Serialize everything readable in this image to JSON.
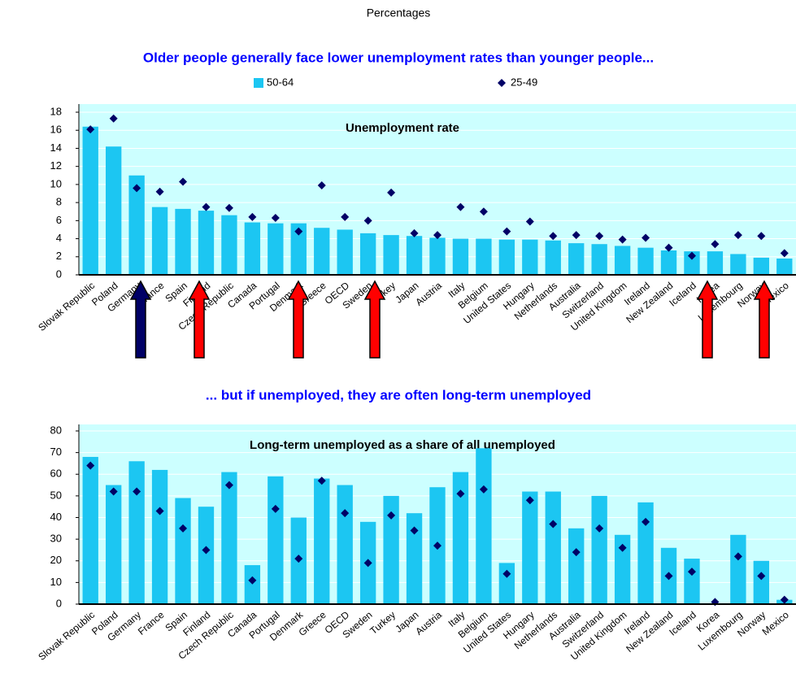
{
  "header": "Percentages",
  "chart_data": [
    {
      "type": "bar",
      "subtitle": "Older people generally face lower unemployment rates than younger people...",
      "title": "Unemployment rate",
      "categories": [
        "Slovak Republic",
        "Poland",
        "Germany",
        "France",
        "Spain",
        "Finland",
        "Czech Republic",
        "Canada",
        "Portugal",
        "Denmark",
        "Greece",
        "OECD",
        "Sweden",
        "Turkey",
        "Japan",
        "Austria",
        "Italy",
        "Belgium",
        "United States",
        "Hungary",
        "Netherlands",
        "Australia",
        "Switzerland",
        "United Kingdom",
        "Ireland",
        "New Zealand",
        "Iceland",
        "Korea",
        "Luxembourg",
        "Norway",
        "Mexico"
      ],
      "series": [
        {
          "name": "50-64",
          "style": "bar",
          "color": "#1cc6f2",
          "values": [
            16.4,
            14.2,
            11.0,
            7.5,
            7.3,
            7.1,
            6.6,
            5.8,
            5.7,
            5.7,
            5.2,
            5.0,
            4.6,
            4.4,
            4.3,
            4.1,
            4.0,
            4.0,
            3.9,
            3.9,
            3.8,
            3.5,
            3.4,
            3.2,
            3.0,
            2.7,
            2.6,
            2.6,
            2.3,
            1.9,
            1.8
          ]
        },
        {
          "name": "25-49",
          "style": "diamond",
          "color": "#000066",
          "values": [
            16.1,
            17.3,
            9.6,
            9.2,
            10.3,
            7.5,
            7.4,
            6.4,
            6.3,
            4.8,
            9.9,
            6.4,
            6.0,
            9.1,
            4.6,
            4.4,
            7.5,
            7.0,
            4.8,
            5.9,
            4.3,
            4.4,
            4.3,
            3.9,
            4.1,
            3.0,
            2.1,
            3.4,
            4.4,
            4.3,
            2.4
          ]
        }
      ],
      "ylim": [
        0,
        18
      ],
      "yticks": [
        0,
        2,
        4,
        6,
        8,
        10,
        12,
        14,
        16,
        18
      ],
      "grid": true,
      "legend": "top"
    },
    {
      "type": "bar",
      "subtitle": "... but if unemployed, they are often long-term unemployed",
      "title": "Long-term unemployed as a share of all unemployed",
      "categories": [
        "Slovak Republic",
        "Poland",
        "Germany",
        "France",
        "Spain",
        "Finland",
        "Czech Republic",
        "Canada",
        "Portugal",
        "Denmark",
        "Greece",
        "OECD",
        "Sweden",
        "Turkey",
        "Japan",
        "Austria",
        "Italy",
        "Belgium",
        "United States",
        "Hungary",
        "Netherlands",
        "Australia",
        "Switzerland",
        "United Kingdom",
        "Ireland",
        "New Zealand",
        "Iceland",
        "Korea",
        "Luxembourg",
        "Norway",
        "Mexico"
      ],
      "series": [
        {
          "style": "bar",
          "color": "#1cc6f2",
          "values": [
            68,
            55,
            66,
            62,
            49,
            45,
            61,
            18,
            59,
            40,
            58,
            55,
            38,
            50,
            42,
            54,
            61,
            72,
            19,
            52,
            52,
            35,
            50,
            32,
            47,
            26,
            21,
            0,
            32,
            20,
            2
          ]
        },
        {
          "style": "diamond",
          "color": "#000066",
          "values": [
            64,
            52,
            52,
            43,
            35,
            25,
            55,
            11,
            44,
            21,
            57,
            42,
            19,
            41,
            34,
            27,
            51,
            53,
            14,
            48,
            37,
            24,
            35,
            26,
            38,
            13,
            15,
            1,
            22,
            13,
            2
          ]
        }
      ],
      "ylim": [
        0,
        80
      ],
      "yticks": [
        0,
        10,
        20,
        30,
        40,
        50,
        60,
        70,
        80
      ],
      "grid": true
    }
  ]
}
